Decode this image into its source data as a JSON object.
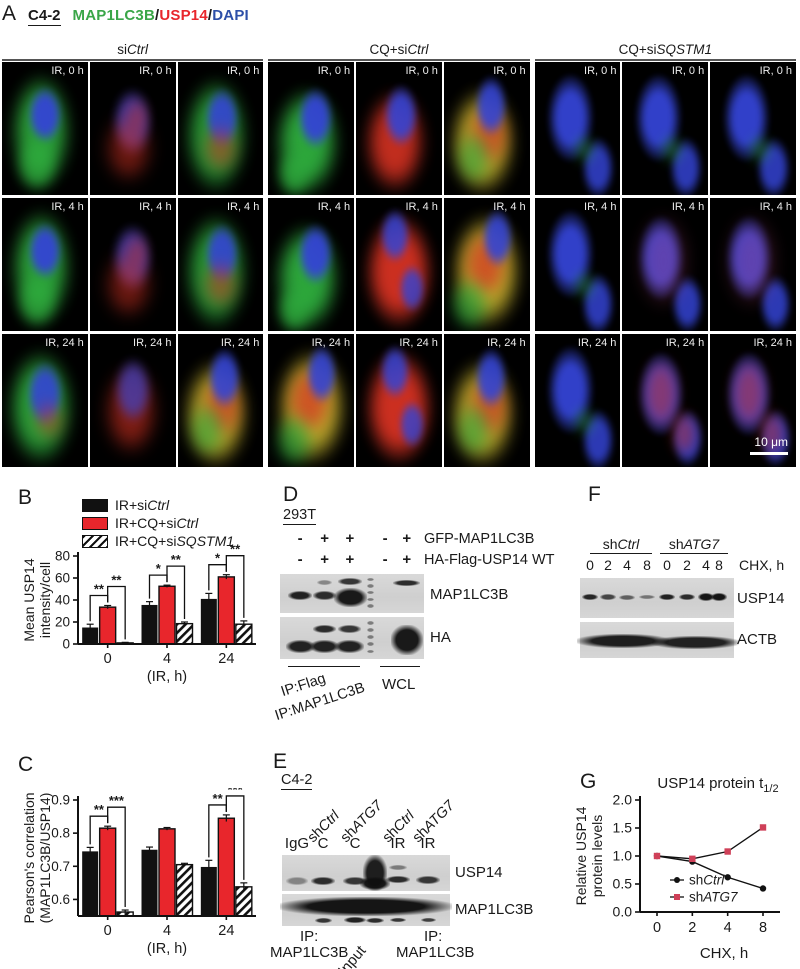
{
  "panel_a": {
    "label": "A",
    "cell_line": "C4-2",
    "stains": [
      {
        "text": "MAP1LC3B",
        "color": "#3aa648"
      },
      {
        "text": "/",
        "color": "#1a1a1a"
      },
      {
        "text": "USP14",
        "color": "#e8262c"
      },
      {
        "text": "/",
        "color": "#1a1a1a"
      },
      {
        "text": "DAPI",
        "color": "#2d4fa8"
      }
    ],
    "groups": [
      {
        "parts": [
          {
            "t": "si"
          },
          {
            "t": "Ctrl",
            "i": true
          }
        ]
      },
      {
        "parts": [
          {
            "t": "CQ+si"
          },
          {
            "t": "Ctrl",
            "i": true
          }
        ]
      },
      {
        "parts": [
          {
            "t": "CQ+si"
          },
          {
            "t": "SQSTM1",
            "i": true
          }
        ]
      }
    ],
    "time_labels": [
      "IR, 0 h",
      "IR, 4 h",
      "IR, 24 h"
    ],
    "scale_bar": "10 μm",
    "channel_colors": {
      "green": "#2fae3e",
      "red": "#d63222",
      "blue": "#3444d4",
      "yellow": "#c3b02e",
      "purple": "#4a3da8",
      "pink": "#c84a78"
    },
    "cell_schemes": [
      [
        "gb",
        "rbdim",
        "gbr",
        "gb2",
        "rb",
        "yb",
        "bfg",
        "bfg",
        "bfg"
      ],
      [
        "gb",
        "rbdim",
        "gbr",
        "gb2",
        "rb2",
        "yb2",
        "bfg",
        "bp",
        "bp"
      ],
      [
        "gbc",
        "rbdim2",
        "yb",
        "yb2",
        "rb2",
        "yb",
        "bfg",
        "brs",
        "brs"
      ]
    ]
  },
  "panel_b": {
    "label": "B"
  },
  "panel_c": {
    "label": "C"
  },
  "panel_d": {
    "label": "D",
    "cell_line": "293T",
    "condition_rows": [
      {
        "signs": [
          "-",
          "+",
          "+",
          "-",
          "+"
        ],
        "label": "GFP-MAP1LC3B"
      },
      {
        "signs": [
          "-",
          "+",
          "+",
          "-",
          "+"
        ],
        "label": "HA-Flag-USP14 WT"
      }
    ],
    "blot_labels": [
      "MAP1LC3B",
      "HA"
    ],
    "ip_labels": [
      "IP:Flag",
      "IP:MAP1LC3B"
    ],
    "wcl_label": "WCL"
  },
  "panel_e": {
    "label": "E",
    "cell_line": "C4-2",
    "rotated_labels": [
      {
        "parts": [
          {
            "t": "sh"
          },
          {
            "t": "Ctrl",
            "i": true
          }
        ]
      },
      {
        "parts": [
          {
            "t": "sh"
          },
          {
            "t": "ATG7",
            "i": true
          }
        ]
      },
      {
        "parts": [
          {
            "t": "sh"
          },
          {
            "t": "Ctrl",
            "i": true
          }
        ]
      },
      {
        "parts": [
          {
            "t": "sh"
          },
          {
            "t": "ATG7",
            "i": true
          }
        ]
      }
    ],
    "lane_labels": [
      "IgG",
      "C",
      "C",
      "IR",
      "IR"
    ],
    "blot_labels": [
      "USP14",
      "MAP1LC3B"
    ],
    "bottom_labels": [
      {
        "line1": "IP:",
        "line2": "MAP1LC3B"
      },
      {
        "rotated": "Input"
      },
      {
        "line1": "IP:",
        "line2": "MAP1LC3B"
      }
    ]
  },
  "panel_f": {
    "label": "F",
    "groups": [
      {
        "parts": [
          {
            "t": "sh"
          },
          {
            "t": "Ctrl",
            "i": true
          }
        ]
      },
      {
        "parts": [
          {
            "t": "sh"
          },
          {
            "t": "ATG7",
            "i": true
          }
        ]
      }
    ],
    "lane_labels": [
      "0",
      "2",
      "4",
      "8",
      "0",
      "2",
      "4",
      "8"
    ],
    "time_unit": "CHX, h",
    "blot_labels": [
      "USP14",
      "ACTB"
    ]
  },
  "panel_g": {
    "label": "G"
  },
  "bar_colors": {
    "black": "#111111",
    "red": "#e8262c"
  },
  "chart_data": [
    {
      "id": "B",
      "type": "bar",
      "ylabel_lines": [
        "Mean USP14",
        "intensity/cell"
      ],
      "xlabel": "(IR, h)",
      "categories": [
        "0",
        "4",
        "24"
      ],
      "ylim": [
        0,
        80
      ],
      "yticks": [
        0,
        20,
        40,
        60,
        80
      ],
      "grid": false,
      "legend_position": "top",
      "series": [
        {
          "name_parts": [
            {
              "t": "IR+si"
            },
            {
              "t": "Ctrl",
              "i": true
            }
          ],
          "style": "black",
          "values": [
            15,
            35.5,
            41
          ],
          "errors": [
            3,
            3,
            5
          ]
        },
        {
          "name_parts": [
            {
              "t": "IR+CQ+si"
            },
            {
              "t": "Ctrl",
              "i": true
            }
          ],
          "style": "red",
          "values": [
            33.5,
            52.5,
            61
          ],
          "errors": [
            1.5,
            1,
            2
          ]
        },
        {
          "name_parts": [
            {
              "t": "IR+CQ+si"
            },
            {
              "t": "SQSTM1",
              "i": true
            }
          ],
          "style": "hatch",
          "values": [
            1,
            18.5,
            18
          ],
          "errors": [
            0.5,
            1.5,
            3
          ]
        }
      ],
      "significance": [
        {
          "group": 0,
          "from": 0,
          "to": 1,
          "label": "**"
        },
        {
          "group": 0,
          "from": 1,
          "to": 2,
          "label": "**"
        },
        {
          "group": 1,
          "from": 0,
          "to": 1,
          "label": "*"
        },
        {
          "group": 1,
          "from": 1,
          "to": 2,
          "label": "**"
        },
        {
          "group": 2,
          "from": 0,
          "to": 1,
          "label": "*"
        },
        {
          "group": 2,
          "from": 1,
          "to": 2,
          "label": "**"
        }
      ]
    },
    {
      "id": "C",
      "type": "bar",
      "ylabel_lines": [
        "Pearson's correlation",
        "(MAP1LC3B/USP14)"
      ],
      "xlabel": "(IR, h)",
      "categories": [
        "0",
        "4",
        "24"
      ],
      "ylim": [
        0.55,
        0.9
      ],
      "yticks": [
        0.6,
        0.7,
        0.8,
        0.9
      ],
      "grid": false,
      "series": [
        {
          "style": "black",
          "values": [
            0.745,
            0.75,
            0.698
          ],
          "errors": [
            0.012,
            0.008,
            0.02
          ]
        },
        {
          "style": "red",
          "values": [
            0.815,
            0.813,
            0.845
          ],
          "errors": [
            0.006,
            0.004,
            0.01
          ]
        },
        {
          "style": "hatch",
          "values": [
            0.562,
            0.705,
            0.638
          ],
          "errors": [
            0.006,
            0.004,
            0.012
          ]
        }
      ],
      "significance": [
        {
          "group": 0,
          "from": 0,
          "to": 1,
          "label": "**"
        },
        {
          "group": 0,
          "from": 1,
          "to": 2,
          "label": "***"
        },
        {
          "group": 2,
          "from": 0,
          "to": 1,
          "label": "**"
        },
        {
          "group": 2,
          "from": 1,
          "to": 2,
          "label": "***"
        }
      ]
    },
    {
      "id": "G",
      "type": "line",
      "title_main": "USP14 protein t",
      "title_sub": "1/2",
      "ylabel_lines": [
        "Relative USP14",
        "protein levels"
      ],
      "xlabel": "CHX, h",
      "x_categories": [
        "0",
        "2",
        "4",
        "8"
      ],
      "ylim": [
        0,
        2
      ],
      "yticks": [
        "0.0",
        "0.5",
        "1.0",
        "1.5",
        "2.0"
      ],
      "grid": false,
      "legend_position": "inside-bottom-left",
      "series": [
        {
          "name_parts": [
            {
              "t": "sh"
            },
            {
              "t": "Ctrl",
              "i": true
            }
          ],
          "color": "#111111",
          "marker": "circle",
          "values": [
            1.0,
            0.9,
            0.62,
            0.42
          ]
        },
        {
          "name_parts": [
            {
              "t": "sh"
            },
            {
              "t": "ATG7",
              "i": true
            }
          ],
          "color": "#cf4058",
          "marker": "square",
          "values": [
            1.0,
            0.95,
            1.08,
            1.51
          ]
        }
      ]
    }
  ]
}
